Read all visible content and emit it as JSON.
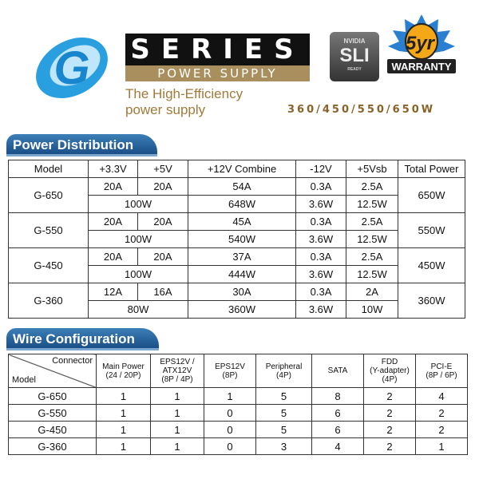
{
  "header": {
    "logo": "G",
    "series": "SERIES",
    "power_supply": "POWER SUPPLY",
    "nvidia": "NVIDIA",
    "sli": "SLI",
    "sli_ready": "READY",
    "warranty_years": "5yr",
    "warranty": "WARRANTY",
    "tagline_1": "The High-Efficiency",
    "tagline_2": "power supply",
    "wattages": "360/450/550/650W"
  },
  "power_distribution": {
    "title": "Power Distribution",
    "headers": [
      "Model",
      "+3.3V",
      "+5V",
      "+12V Combine",
      "-12V",
      "+5Vsb",
      "Total Power"
    ],
    "rows": [
      {
        "model": "G-650",
        "v33": "20A",
        "v5": "20A",
        "v12": "54A",
        "vn12": "0.3A",
        "vsb": "2.5A",
        "combined_335": "100W",
        "w12": "648W",
        "wn12": "3.6W",
        "wsb": "12.5W",
        "total": "650W"
      },
      {
        "model": "G-550",
        "v33": "20A",
        "v5": "20A",
        "v12": "45A",
        "vn12": "0.3A",
        "vsb": "2.5A",
        "combined_335": "100W",
        "w12": "540W",
        "wn12": "3.6W",
        "wsb": "12.5W",
        "total": "550W"
      },
      {
        "model": "G-450",
        "v33": "20A",
        "v5": "20A",
        "v12": "37A",
        "vn12": "0.3A",
        "vsb": "2.5A",
        "combined_335": "100W",
        "w12": "444W",
        "wn12": "3.6W",
        "wsb": "12.5W",
        "total": "450W"
      },
      {
        "model": "G-360",
        "v33": "12A",
        "v5": "16A",
        "v12": "30A",
        "vn12": "0.3A",
        "vsb": "2A",
        "combined_335": "80W",
        "w12": "360W",
        "wn12": "3.6W",
        "wsb": "10W",
        "total": "360W"
      }
    ]
  },
  "wire_configuration": {
    "title": "Wire Configuration",
    "corner_connector": "Connector",
    "corner_model": "Model",
    "headers": [
      [
        "Main Power",
        "(24 / 20P)"
      ],
      [
        "EPS12V /",
        "ATX12V",
        "(8P / 4P)"
      ],
      [
        "EPS12V",
        "(8P)"
      ],
      [
        "Peripheral",
        "(4P)"
      ],
      [
        "SATA"
      ],
      [
        "FDD",
        "(Y-adapter)",
        "(4P)"
      ],
      [
        "PCI-E",
        "(8P / 6P)"
      ]
    ],
    "rows": [
      [
        "G-650",
        "1",
        "1",
        "1",
        "5",
        "8",
        "2",
        "4"
      ],
      [
        "G-550",
        "1",
        "1",
        "0",
        "5",
        "6",
        "2",
        "2"
      ],
      [
        "G-450",
        "1",
        "1",
        "0",
        "5",
        "6",
        "2",
        "2"
      ],
      [
        "G-360",
        "1",
        "1",
        "0",
        "3",
        "4",
        "2",
        "1"
      ]
    ]
  }
}
